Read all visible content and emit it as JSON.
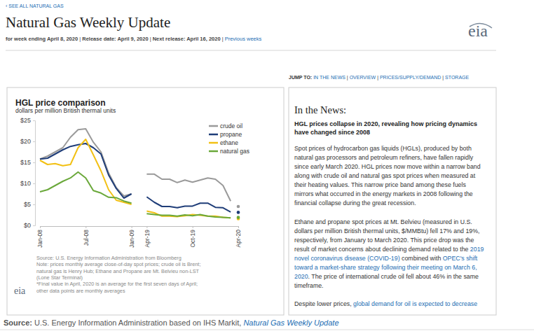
{
  "page": {
    "back_link": "‹ SEE ALL NATURAL GAS",
    "title": "Natural Gas Weekly Update",
    "logo": "eia",
    "meta": [
      {
        "text": "for week ending April 8, 2020",
        "bold": true
      },
      {
        "text": " | "
      },
      {
        "text": "Release date: April 9, 2020",
        "bold": true
      },
      {
        "text": " | "
      },
      {
        "text": "Next release: April 16, 2020",
        "bold": true
      },
      {
        "text": " | "
      },
      {
        "text": "Previous weeks",
        "link": true
      }
    ],
    "jump_to": [
      {
        "text": "JUMP TO: ",
        "bold": true
      },
      {
        "text": "IN THE NEWS",
        "link": true
      },
      {
        "text": " | "
      },
      {
        "text": "OVERVIEW",
        "link": true
      },
      {
        "text": " | "
      },
      {
        "text": "PRICES/SUPPLY/DEMAND",
        "link": true
      },
      {
        "text": " | "
      },
      {
        "text": "STORAGE",
        "link": true
      }
    ],
    "news": {
      "heading": "In the News:",
      "headline_lines": [
        "HGL prices collapse in 2020, revealing how pricing dynamics",
        "have changed since 2008"
      ],
      "paragraphs": [
        [
          [
            {
              "text": "Spot prices of hydrocarbon gas liquids (HGLs), produced by both"
            }
          ],
          [
            {
              "text": "natural gas processors and petroleum refiners, have fallen rapidly"
            }
          ],
          [
            {
              "text": "since early March 2020. HGL prices now move within a narrow band"
            }
          ],
          [
            {
              "text": "along with crude oil and natural gas spot prices when measured at"
            }
          ],
          [
            {
              "text": "their heating values. This narrow price band among these fuels"
            }
          ],
          [
            {
              "text": "mirrors what occurred in the energy markets in 2008 following the"
            }
          ],
          [
            {
              "text": "financial collapse during the great recession."
            }
          ]
        ],
        [
          [
            {
              "text": "Ethane and propane spot prices at Mt. Belvieu (measured in U.S."
            }
          ],
          [
            {
              "text": "dollars per million British thermal units, $/MMBtu) fell 17% and 19%,"
            }
          ],
          [
            {
              "text": "respectively, from January to March 2020. This price drop was the"
            }
          ],
          [
            {
              "text": "result of market concerns about declining demand related to the "
            },
            {
              "text": "2019",
              "link": true
            }
          ],
          [
            {
              "text": "novel coronavirus disease (COVID-19)",
              "link": true
            },
            {
              "text": " combined with "
            },
            {
              "text": "OPEC's shift",
              "link": true
            }
          ],
          [
            {
              "text": "toward a market-share strategy following their meeting on March 6,",
              "link": true
            }
          ],
          [
            {
              "text": "2020",
              "link": true
            },
            {
              "text": ". The price of international crude oil fell about 46% in the same"
            }
          ],
          [
            {
              "text": "timeframe."
            }
          ]
        ],
        [
          [
            {
              "text": "Despite lower prices, "
            },
            {
              "text": "global demand for oil is expected to decrease",
              "link": true
            }
          ]
        ]
      ]
    },
    "source": [
      {
        "text": "Source:",
        "bold": true
      },
      {
        "text": " U.S. Energy Information Administration based on IHS Markit, "
      },
      {
        "text": "Natural Gas Weekly Update",
        "link": true
      }
    ]
  },
  "chart_data": {
    "type": "line",
    "title": "HGL price comparison",
    "subtitle": "dollars per million British thermal units",
    "categories": [
      "Jan-08",
      null,
      null,
      null,
      null,
      null,
      "Jul-08",
      null,
      null,
      null,
      null,
      null,
      "Jan-09",
      null,
      "Apr-19",
      null,
      null,
      null,
      null,
      null,
      "Oct-19",
      null,
      null,
      null,
      null,
      null,
      "Apr-20"
    ],
    "series": [
      {
        "name": "crude oil",
        "color": "#9a9a9a",
        "values": [
          15.8,
          16.5,
          17.5,
          18.5,
          21,
          22.8,
          23,
          19.8,
          17.5,
          12.5,
          9,
          7,
          7.5,
          null,
          12.2,
          12.2,
          11,
          11,
          10.2,
          10.8,
          10.3,
          10.8,
          11.3,
          11,
          9.5,
          5.8,
          null
        ],
        "final_value": 4.5
      },
      {
        "name": "propane",
        "color": "#1f3d78",
        "values": [
          15.8,
          16,
          17,
          18,
          18.8,
          19.2,
          19.5,
          18.5,
          17,
          12,
          8.8,
          6.5,
          7.5,
          null,
          6.8,
          5.5,
          4.5,
          4.5,
          4.2,
          4.6,
          4.6,
          5.3,
          5.3,
          4.3,
          4.2,
          3.2,
          null
        ],
        "final_value": 3.1
      },
      {
        "name": "ethane",
        "color": "#f2c014",
        "values": [
          15.5,
          14.5,
          14.7,
          14.2,
          14.5,
          18.5,
          20.5,
          16.8,
          13,
          8.5,
          6,
          5.5,
          5,
          null,
          3.4,
          3,
          2.2,
          2.2,
          2.1,
          2.3,
          2.6,
          2.4,
          2.2,
          2.2,
          1.9,
          1.8,
          null
        ],
        "final_value": 1.6
      },
      {
        "name": "natural gas",
        "color": "#6aa83a",
        "values": [
          8,
          8.5,
          9.5,
          10.5,
          11.3,
          12.7,
          11.3,
          8.3,
          7.7,
          6.7,
          6.6,
          5.8,
          5.3,
          null,
          2.8,
          2.6,
          2.4,
          2.4,
          2.2,
          2.5,
          2.3,
          2.6,
          2.2,
          2,
          1.9,
          1.8,
          null
        ],
        "final_value": 1.9
      }
    ],
    "ylim": [
      0,
      25
    ],
    "yticks": [
      {
        "value": 0,
        "label": "$0"
      },
      {
        "value": 5,
        "label": "$5"
      },
      {
        "value": 10,
        "label": "$10"
      },
      {
        "value": 15,
        "label": "$15"
      },
      {
        "value": 20,
        "label": "$20"
      },
      {
        "value": 25,
        "label": "$25"
      }
    ],
    "grid": false,
    "legend": "top-right",
    "notes": [
      "Source: U.S. Energy Information Administration from Bloomberg",
      "Note: prices monthly average close-of-day spot prices; crude oil is Brent;",
      "natural gas is Henry Hub; Ethane and Propane are Mt. Belvieu non-LST",
      "(Lone Star Terminal)",
      "*Final value in April, 2020 is an average for the first seven days of April;",
      "other data points are monthly averages"
    ]
  }
}
